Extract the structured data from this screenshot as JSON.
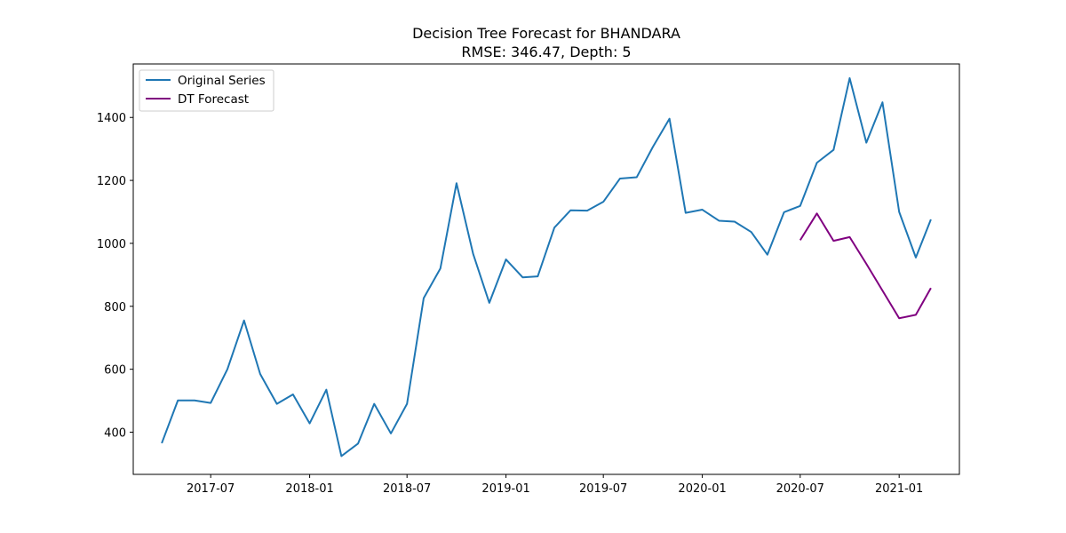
{
  "chart_data": {
    "type": "line",
    "title": "Decision Tree Forecast for BHANDARA",
    "subtitle": "RMSE: 346.47, Depth: 5",
    "xlabel": "",
    "ylabel": "",
    "xlim": [
      "2017-02-07",
      "2021-04-23"
    ],
    "ylim": [
      266,
      1570
    ],
    "x_ticks": [
      "2017-07",
      "2018-01",
      "2018-07",
      "2019-01",
      "2019-07",
      "2020-01",
      "2020-07",
      "2021-01"
    ],
    "y_ticks": [
      400,
      600,
      800,
      1000,
      1200,
      1400
    ],
    "grid": false,
    "legend_position": "top-left",
    "series": [
      {
        "name": "Original Series",
        "color": "#1f77b4",
        "x": [
          "2017-04-01",
          "2017-05-01",
          "2017-06-01",
          "2017-07-01",
          "2017-08-01",
          "2017-09-01",
          "2017-10-01",
          "2017-11-01",
          "2017-12-01",
          "2018-01-01",
          "2018-02-01",
          "2018-03-01",
          "2018-04-01",
          "2018-05-01",
          "2018-06-01",
          "2018-07-01",
          "2018-08-01",
          "2018-09-01",
          "2018-10-01",
          "2018-11-01",
          "2018-12-01",
          "2019-01-01",
          "2019-02-01",
          "2019-03-01",
          "2019-04-01",
          "2019-05-01",
          "2019-06-01",
          "2019-07-01",
          "2019-08-01",
          "2019-09-01",
          "2019-10-01",
          "2019-11-01",
          "2019-12-01",
          "2020-01-01",
          "2020-02-01",
          "2020-03-01",
          "2020-04-01",
          "2020-05-01",
          "2020-06-01",
          "2020-07-01",
          "2020-08-01",
          "2020-09-01",
          "2020-10-01",
          "2020-11-01",
          "2020-12-01",
          "2021-01-01",
          "2021-02-01",
          "2021-03-01"
        ],
        "values": [
          365,
          501,
          501,
          493,
          600,
          755,
          585,
          490,
          520,
          428,
          535,
          324,
          364,
          490,
          396,
          490,
          826,
          920,
          1191,
          966,
          811,
          949,
          892,
          895,
          1050,
          1105,
          1104,
          1132,
          1206,
          1210,
          1306,
          1396,
          1097,
          1107,
          1072,
          1069,
          1036,
          964,
          1099,
          1119,
          1256,
          1297,
          1525,
          1320,
          1448,
          1100,
          955,
          1076
        ]
      },
      {
        "name": "DT Forecast",
        "color": "#800080",
        "x": [
          "2020-07-01",
          "2020-08-01",
          "2020-09-01",
          "2020-10-01",
          "2020-11-01",
          "2020-12-01",
          "2021-01-01",
          "2021-02-01",
          "2021-03-01"
        ],
        "values": [
          1010,
          1095,
          1008,
          1020,
          935,
          850,
          762,
          773,
          858
        ]
      }
    ]
  }
}
